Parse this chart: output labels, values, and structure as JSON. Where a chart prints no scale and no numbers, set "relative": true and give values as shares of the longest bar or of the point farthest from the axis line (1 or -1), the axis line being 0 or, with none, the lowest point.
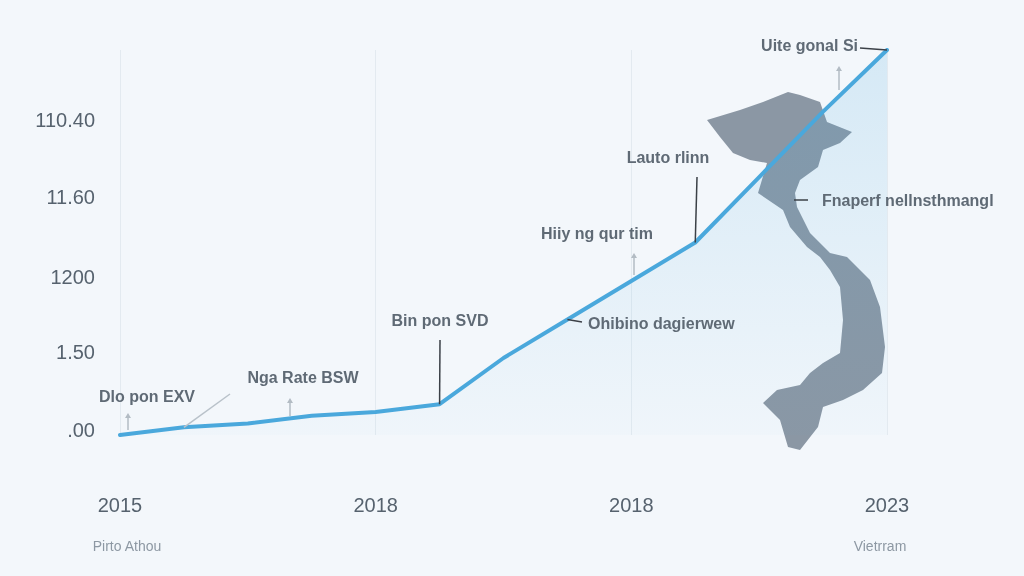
{
  "chart_data": {
    "type": "area",
    "relative": true,
    "categories": [
      "2015",
      null,
      null,
      null,
      "2018",
      null,
      null,
      null,
      "2018",
      null,
      null,
      null,
      "2023"
    ],
    "series": [
      {
        "color": "#4aa8dc",
        "values": [
          0,
          0.02,
          0.03,
          0.05,
          0.06,
          0.08,
          0.2,
          0.3,
          0.4,
          0.5,
          0.67,
          0.84,
          1
        ]
      }
    ],
    "grid": "x",
    "annotations": [
      {
        "text": "Uite gonal Si",
        "x": "2023",
        "y": 1
      },
      "Lauto rlinn",
      "Hiiy ng qur tim",
      "Bin pon SVD",
      "Ohibino dagierwew",
      "Fnaperf nellnsthmangl",
      "Nga Rate BSW",
      "Dlo pon EXV",
      "Pirto Athou",
      "Vietrram",
      "110.40",
      "11.60",
      "1200",
      "1.50",
      ".00"
    ]
  }
}
